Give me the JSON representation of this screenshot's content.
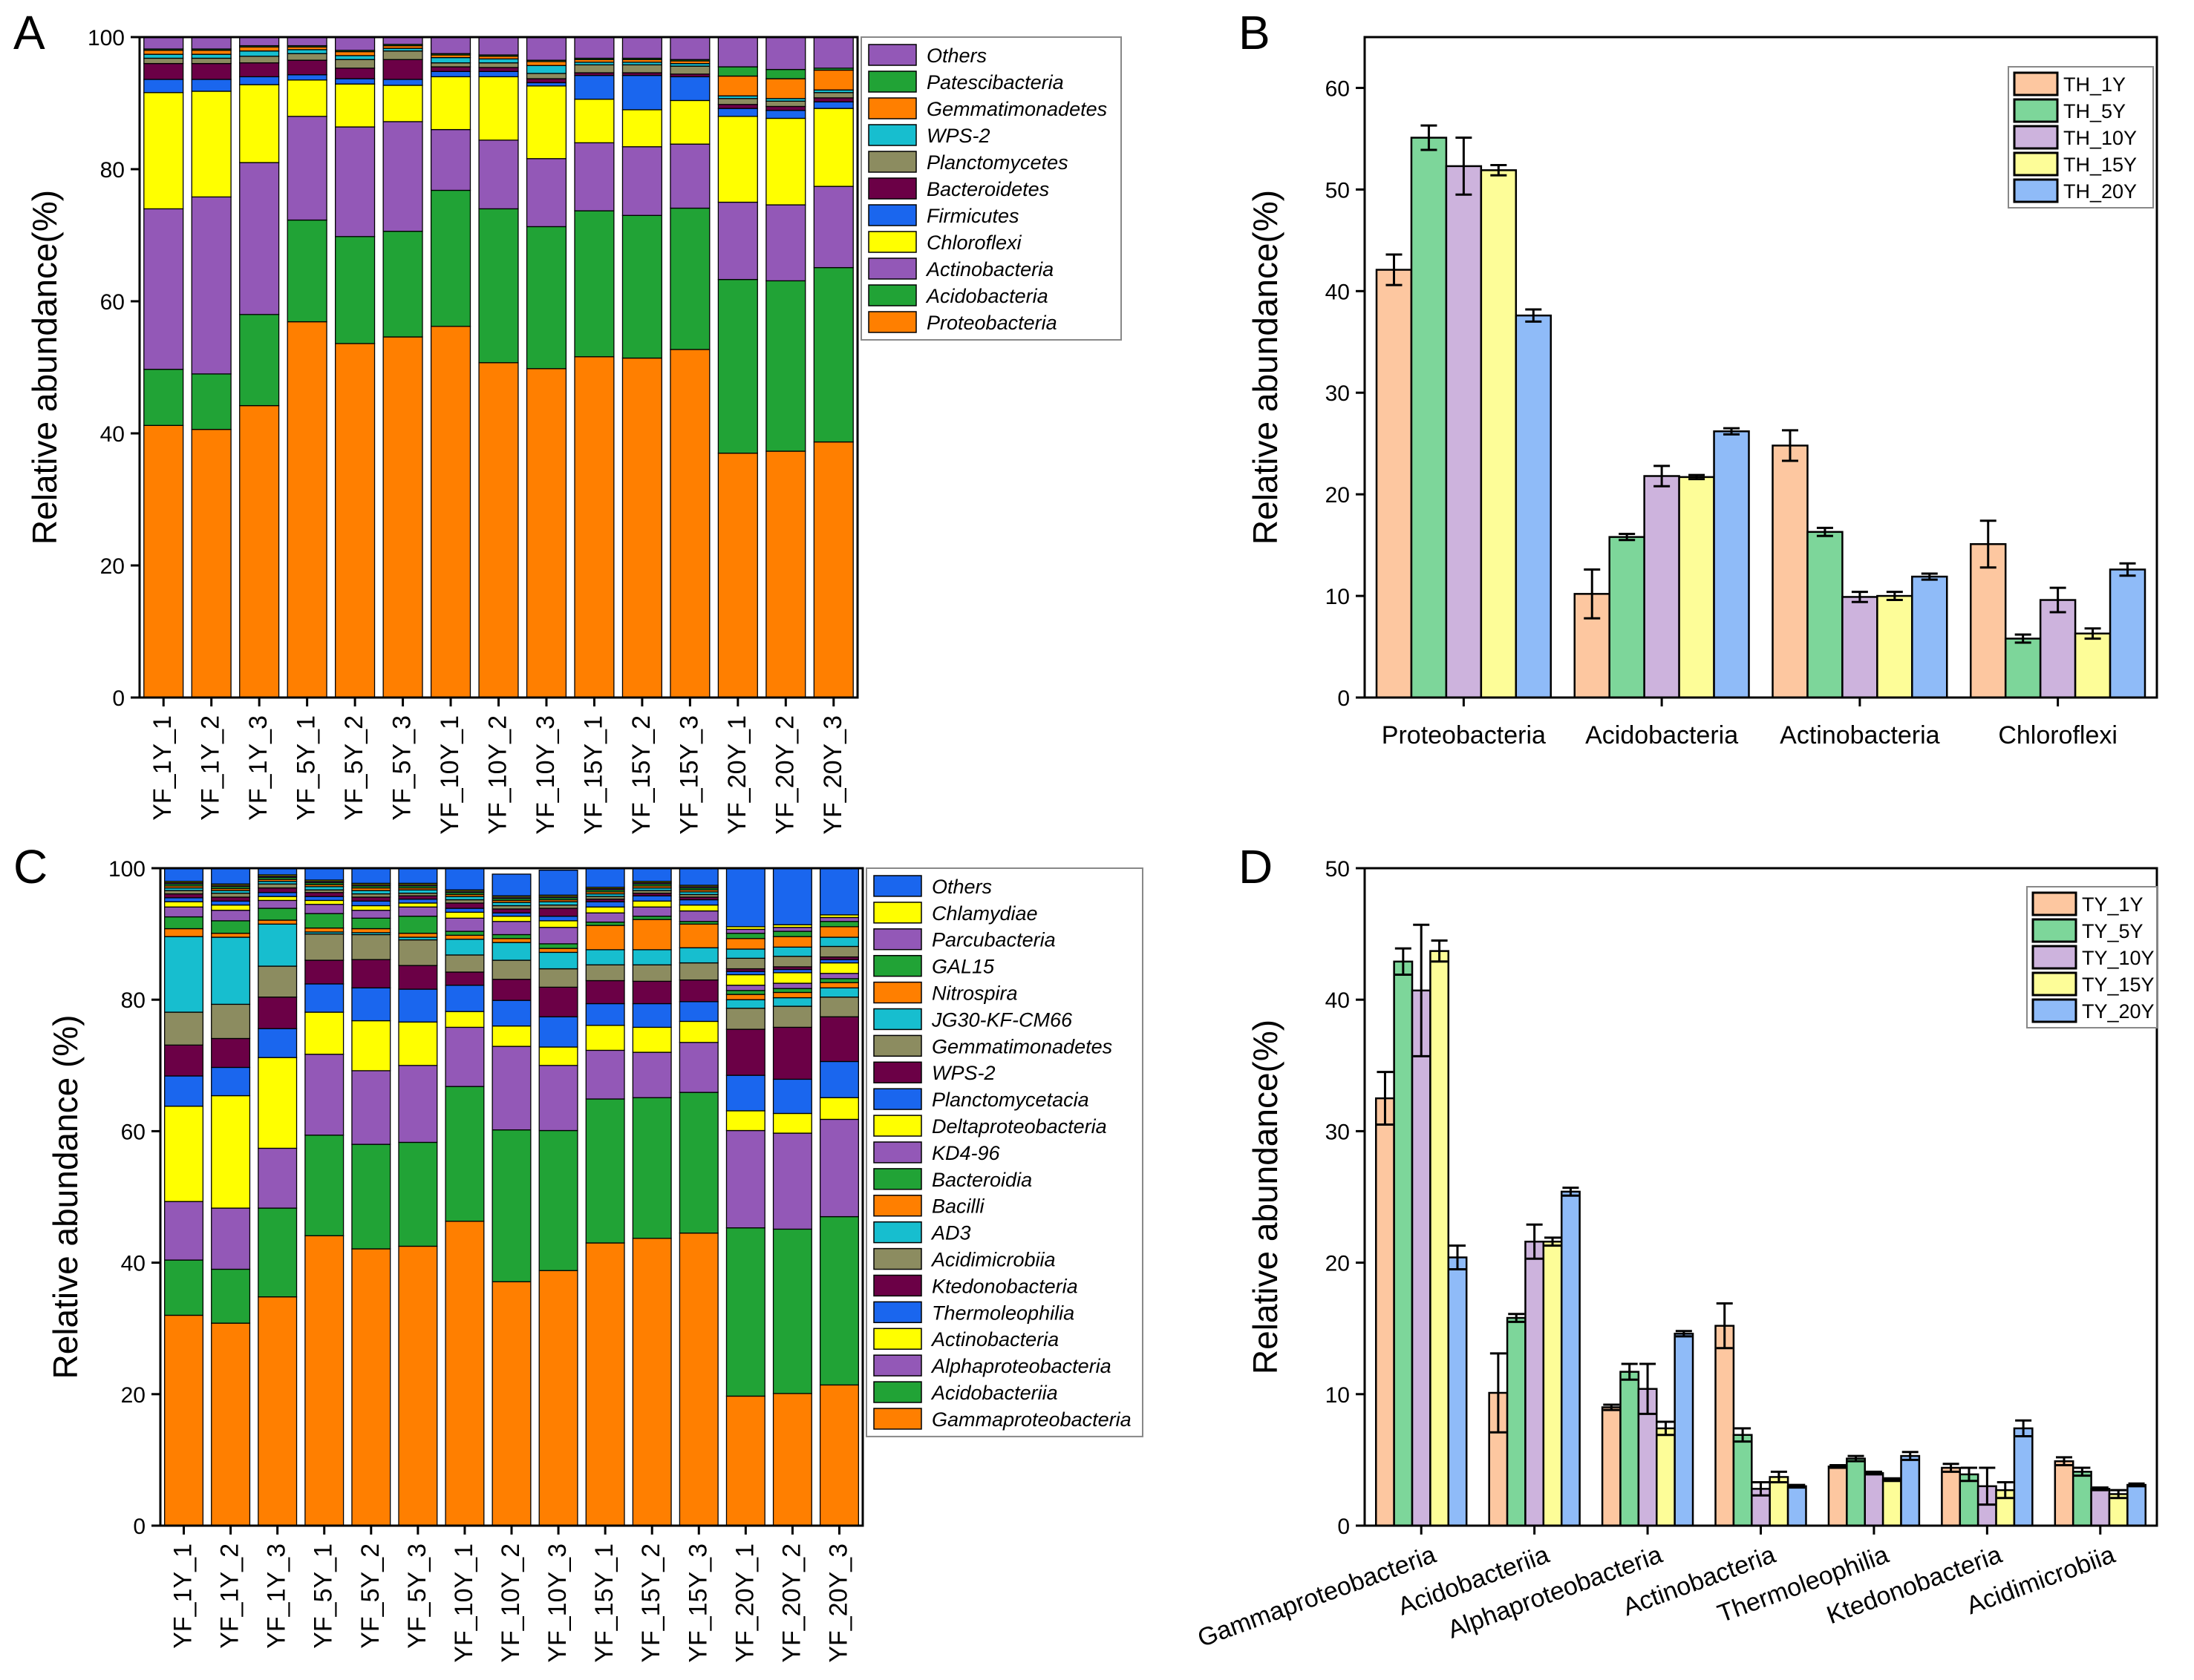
{
  "chart_data": [
    {
      "panel": "A",
      "type": "bar",
      "stacked": true,
      "ylabel": "Relative abundance(%)",
      "ylim": [
        0,
        100
      ],
      "yticks": [
        0,
        20,
        40,
        60,
        80,
        100
      ],
      "categories": [
        "YF_1Y_1",
        "YF_1Y_2",
        "YF_1Y_3",
        "YF_5Y_1",
        "YF_5Y_2",
        "YF_5Y_3",
        "YF_10Y_1",
        "YF_10Y_2",
        "YF_10Y_3",
        "YF_15Y_1",
        "YF_15Y_2",
        "YF_15Y_3",
        "YF_20Y_1",
        "YF_20Y_2",
        "YF_20Y_3"
      ],
      "series": [
        {
          "name": "Proteobacteria",
          "color": "#FF7F00",
          "values": [
            41.2,
            40.6,
            44.2,
            56.9,
            53.6,
            54.6,
            56.2,
            50.7,
            49.8,
            51.6,
            51.4,
            52.7,
            37.0,
            37.3,
            38.7
          ]
        },
        {
          "name": "Acidobacteria",
          "color": "#21A336",
          "values": [
            8.5,
            8.4,
            13.8,
            15.4,
            16.2,
            16.0,
            20.6,
            23.3,
            21.5,
            22.1,
            21.6,
            21.4,
            26.3,
            25.8,
            26.4
          ]
        },
        {
          "name": "Actinobacteria",
          "color": "#9358B7",
          "values": [
            24.3,
            26.8,
            23.0,
            15.7,
            16.6,
            16.6,
            9.2,
            10.4,
            10.3,
            10.3,
            10.4,
            9.7,
            11.7,
            11.5,
            12.3
          ]
        },
        {
          "name": "Chloroflexi",
          "color": "#FFFF00",
          "values": [
            17.6,
            16.0,
            11.8,
            5.5,
            6.5,
            5.5,
            8.0,
            9.6,
            11.0,
            6.6,
            5.6,
            6.6,
            13.0,
            13.1,
            11.8
          ]
        },
        {
          "name": "Firmicutes",
          "color": "#1A66EE",
          "values": [
            2.0,
            1.8,
            1.2,
            0.8,
            0.8,
            0.9,
            0.8,
            0.8,
            0.5,
            3.6,
            5.2,
            3.6,
            1.2,
            1.2,
            1.0
          ]
        },
        {
          "name": "Bacteroidetes",
          "color": "#6B0046",
          "values": [
            2.4,
            2.4,
            2.1,
            2.2,
            1.6,
            3.0,
            0.7,
            0.6,
            0.6,
            0.4,
            0.4,
            0.4,
            0.6,
            0.6,
            0.6
          ]
        },
        {
          "name": "Planctomycetes",
          "color": "#8C8C60",
          "values": [
            0.8,
            0.8,
            1.0,
            1.0,
            1.3,
            1.3,
            0.6,
            0.7,
            0.8,
            1.2,
            1.2,
            1.2,
            0.9,
            0.8,
            0.8
          ]
        },
        {
          "name": "WPS-2",
          "color": "#17BECF",
          "values": [
            0.6,
            0.6,
            0.8,
            0.6,
            0.6,
            0.4,
            0.8,
            0.6,
            1.2,
            0.4,
            0.4,
            0.4,
            0.4,
            0.4,
            0.4
          ]
        },
        {
          "name": "Gemmatimonadetes",
          "color": "#FF7F00",
          "values": [
            0.6,
            0.6,
            0.6,
            0.4,
            0.6,
            0.4,
            0.4,
            0.4,
            0.6,
            0.4,
            0.4,
            0.4,
            3.0,
            3.0,
            3.0
          ]
        },
        {
          "name": "Patescibacteria",
          "color": "#21A336",
          "values": [
            0.2,
            0.2,
            0.2,
            0.2,
            0.2,
            0.2,
            0.2,
            0.2,
            0.2,
            0.2,
            0.2,
            0.2,
            1.4,
            1.4,
            0.3
          ]
        },
        {
          "name": "Others",
          "color": "#9358B7",
          "values": [
            1.8,
            1.8,
            1.3,
            1.3,
            2.0,
            1.1,
            2.5,
            2.7,
            3.5,
            3.2,
            3.2,
            3.4,
            4.5,
            5.1,
            4.7
          ]
        }
      ]
    },
    {
      "panel": "B",
      "type": "bar",
      "ylabel": "Relative abundance(%)",
      "ylim": [
        0,
        65
      ],
      "yticks": [
        0,
        10,
        20,
        30,
        40,
        50,
        60
      ],
      "categories": [
        "Proteobacteria",
        "Acidobacteria",
        "Actinobacteria",
        "Chloroflexi"
      ],
      "series": [
        {
          "name": "TH_1Y",
          "color": "#FDC7A0",
          "values": [
            42.1,
            10.2,
            24.8,
            15.1
          ],
          "errors": [
            1.5,
            2.4,
            1.5,
            2.3
          ]
        },
        {
          "name": "TH_5Y",
          "color": "#7DD69A",
          "values": [
            55.1,
            15.8,
            16.3,
            5.8
          ],
          "errors": [
            1.2,
            0.3,
            0.4,
            0.4
          ]
        },
        {
          "name": "TH_10Y",
          "color": "#CDB3DD",
          "values": [
            52.3,
            21.8,
            9.9,
            9.6
          ],
          "errors": [
            2.8,
            1.0,
            0.5,
            1.2
          ]
        },
        {
          "name": "TH_15Y",
          "color": "#FDFD98",
          "values": [
            51.9,
            21.7,
            10.0,
            6.3
          ],
          "errors": [
            0.5,
            0.2,
            0.4,
            0.5
          ]
        },
        {
          "name": "TH_20Y",
          "color": "#8FBBF8",
          "values": [
            37.6,
            26.2,
            11.9,
            12.6
          ],
          "errors": [
            0.6,
            0.3,
            0.3,
            0.6
          ]
        }
      ]
    },
    {
      "panel": "C",
      "type": "bar",
      "stacked": true,
      "ylabel": "Relative abundance (%)",
      "ylim": [
        0,
        100
      ],
      "yticks": [
        0,
        20,
        40,
        60,
        80,
        100
      ],
      "categories": [
        "YF_1Y_1",
        "YF_1Y_2",
        "YF_1Y_3",
        "YF_5Y_1",
        "YF_5Y_2",
        "YF_5Y_3",
        "YF_10Y_1",
        "YF_10Y_2",
        "YF_10Y_3",
        "YF_15Y_1",
        "YF_15Y_2",
        "YF_15Y_3",
        "YF_20Y_1",
        "YF_20Y_2",
        "YF_20Y_3"
      ],
      "series": [
        {
          "name": "Gammaproteobacteria",
          "color": "#FF7F00",
          "values": [
            32.0,
            30.8,
            34.8,
            44.1,
            42.1,
            42.5,
            46.3,
            37.1,
            38.8,
            43.0,
            43.7,
            44.5,
            19.7,
            20.1,
            21.4
          ]
        },
        {
          "name": "Acidobacteriia",
          "color": "#21A336",
          "values": [
            8.4,
            8.2,
            13.5,
            15.3,
            15.9,
            15.8,
            20.5,
            23.1,
            21.3,
            21.9,
            21.4,
            21.4,
            25.6,
            25.0,
            25.6
          ]
        },
        {
          "name": "Alphaproteobacteria",
          "color": "#9358B7",
          "values": [
            8.9,
            9.3,
            9.1,
            12.3,
            11.2,
            11.7,
            9.0,
            12.7,
            9.9,
            7.4,
            6.9,
            7.6,
            14.8,
            14.6,
            14.8
          ]
        },
        {
          "name": "Actinobacteria",
          "color": "#FFFF00",
          "values": [
            14.5,
            17.1,
            13.8,
            6.4,
            7.6,
            6.6,
            2.4,
            3.1,
            2.8,
            3.8,
            3.8,
            3.2,
            3.0,
            3.0,
            3.3
          ]
        },
        {
          "name": "Thermoleophilia",
          "color": "#1A66EE",
          "values": [
            4.6,
            4.3,
            4.4,
            4.3,
            5.0,
            5.0,
            4.0,
            3.9,
            4.6,
            3.3,
            3.6,
            3.0,
            5.4,
            5.2,
            5.5
          ]
        },
        {
          "name": "Ktedonobacteria",
          "color": "#6B0046",
          "values": [
            4.7,
            4.4,
            4.8,
            3.6,
            4.3,
            3.6,
            2.0,
            3.2,
            4.5,
            3.5,
            3.4,
            3.3,
            7.0,
            7.9,
            6.8
          ]
        },
        {
          "name": "Acidimicrobiia",
          "color": "#8C8C60",
          "values": [
            5.0,
            5.2,
            4.7,
            4.0,
            3.8,
            3.9,
            2.6,
            2.9,
            2.8,
            2.4,
            2.5,
            2.6,
            3.2,
            3.2,
            3.0
          ]
        },
        {
          "name": "AD3",
          "color": "#17BECF",
          "values": [
            11.5,
            10.2,
            6.4,
            0.3,
            0.3,
            0.4,
            2.4,
            2.7,
            2.5,
            2.3,
            2.3,
            2.3,
            1.3,
            1.3,
            1.4
          ]
        },
        {
          "name": "Bacilli",
          "color": "#FF7F00",
          "values": [
            1.2,
            0.6,
            0.6,
            0.6,
            0.6,
            0.6,
            0.6,
            0.6,
            0.6,
            3.7,
            4.6,
            3.6,
            0.8,
            0.8,
            0.8
          ]
        },
        {
          "name": "Bacteroidia",
          "color": "#21A336",
          "values": [
            1.8,
            1.9,
            1.8,
            2.2,
            1.6,
            2.6,
            0.6,
            0.6,
            0.7,
            0.5,
            0.5,
            0.4,
            0.6,
            0.6,
            0.6
          ]
        },
        {
          "name": "KD4-96",
          "color": "#9358B7",
          "values": [
            1.5,
            1.6,
            1.2,
            1.4,
            1.2,
            1.4,
            2.0,
            2.0,
            2.5,
            1.4,
            1.4,
            1.6,
            0.8,
            0.8,
            0.8
          ]
        },
        {
          "name": "Deltaproteobacteria",
          "color": "#FFFF00",
          "values": [
            0.8,
            0.8,
            0.6,
            0.6,
            0.7,
            0.6,
            0.9,
            0.8,
            1.0,
            0.9,
            0.9,
            0.9,
            1.6,
            1.6,
            1.6
          ]
        },
        {
          "name": "Planctomycetacia",
          "color": "#1A66EE",
          "values": [
            0.6,
            0.6,
            0.6,
            0.6,
            0.7,
            0.6,
            0.6,
            0.5,
            0.7,
            0.8,
            0.8,
            0.8,
            0.5,
            0.5,
            0.5
          ]
        },
        {
          "name": "WPS-2",
          "color": "#6B0046",
          "values": [
            0.6,
            0.6,
            0.7,
            0.6,
            0.6,
            0.5,
            0.8,
            0.6,
            1.2,
            0.4,
            0.4,
            0.4,
            0.4,
            0.4,
            0.4
          ]
        },
        {
          "name": "Gemmatimonadetes",
          "color": "#8C8C60",
          "values": [
            0.5,
            0.6,
            0.6,
            0.4,
            0.5,
            0.4,
            0.5,
            0.5,
            0.5,
            0.4,
            0.4,
            0.4,
            1.6,
            1.6,
            1.6
          ]
        },
        {
          "name": "JG30-KF-CM66",
          "color": "#17BECF",
          "values": [
            0.4,
            0.4,
            0.4,
            0.5,
            0.5,
            0.5,
            0.5,
            0.5,
            0.5,
            0.4,
            0.4,
            0.4,
            1.4,
            1.4,
            1.4
          ]
        },
        {
          "name": "Nitrospira",
          "color": "#FF7F00",
          "values": [
            0.3,
            0.3,
            0.3,
            0.3,
            0.4,
            0.3,
            0.3,
            0.3,
            0.3,
            0.3,
            0.3,
            0.3,
            1.6,
            1.6,
            1.6
          ]
        },
        {
          "name": "GAL15",
          "color": "#21A336",
          "values": [
            0.3,
            0.3,
            0.3,
            0.3,
            0.3,
            0.3,
            0.3,
            0.3,
            0.3,
            0.3,
            0.3,
            0.3,
            0.8,
            0.8,
            0.8
          ]
        },
        {
          "name": "Parcubacteria",
          "color": "#9358B7",
          "values": [
            0.2,
            0.2,
            0.2,
            0.2,
            0.2,
            0.2,
            0.2,
            0.2,
            0.2,
            0.2,
            0.2,
            0.2,
            0.6,
            0.6,
            0.6
          ]
        },
        {
          "name": "Chlamydiae",
          "color": "#FFFF00",
          "values": [
            0.2,
            0.2,
            0.2,
            0.2,
            0.2,
            0.2,
            0.2,
            0.2,
            0.2,
            0.2,
            0.2,
            0.2,
            0.4,
            0.4,
            0.4
          ]
        },
        {
          "name": "Others",
          "color": "#1A66EE",
          "values": [
            2.5,
            2.5,
            2.6,
            2.4,
            2.7,
            2.6,
            3.2,
            3.3,
            3.8,
            3.4,
            3.4,
            3.0,
            8.8,
            8.7,
            7.8
          ]
        }
      ]
    },
    {
      "panel": "D",
      "type": "bar",
      "ylabel": "Relative abundance(%)",
      "ylim": [
        0,
        50
      ],
      "yticks": [
        0,
        10,
        20,
        30,
        40,
        50
      ],
      "categories": [
        "Gammaproteobacteria",
        "Acidobacteriia",
        "Alphaproteobacteria",
        "Actinobacteria",
        "Thermoleophilia",
        "Ktedonobacteria",
        "Acidimicrobiia"
      ],
      "series": [
        {
          "name": "TY_1Y",
          "color": "#FDC7A0",
          "values": [
            32.5,
            10.1,
            9.0,
            15.2,
            4.5,
            4.4,
            4.9
          ],
          "errors": [
            2.0,
            3.0,
            0.2,
            1.7,
            0.1,
            0.3,
            0.3
          ]
        },
        {
          "name": "TY_5Y",
          "color": "#7DD69A",
          "values": [
            42.9,
            15.8,
            11.7,
            6.9,
            5.1,
            3.9,
            4.1
          ],
          "errors": [
            1.0,
            0.3,
            0.6,
            0.5,
            0.2,
            0.5,
            0.3
          ]
        },
        {
          "name": "TY_10Y",
          "color": "#CDB3DD",
          "values": [
            40.7,
            21.6,
            10.4,
            2.8,
            4.0,
            3.0,
            2.8
          ],
          "errors": [
            5.0,
            1.3,
            1.9,
            0.5,
            0.1,
            1.4,
            0.1
          ]
        },
        {
          "name": "TY_15Y",
          "color": "#FDFD98",
          "values": [
            43.7,
            21.6,
            7.4,
            3.7,
            3.5,
            2.7,
            2.4
          ],
          "errors": [
            0.8,
            0.3,
            0.5,
            0.4,
            0.1,
            0.6,
            0.3
          ]
        },
        {
          "name": "TY_20Y",
          "color": "#8FBBF8",
          "values": [
            20.4,
            25.4,
            14.6,
            3.0,
            5.3,
            7.4,
            3.1
          ],
          "errors": [
            0.9,
            0.3,
            0.2,
            0.1,
            0.3,
            0.6,
            0.1
          ]
        }
      ]
    }
  ]
}
